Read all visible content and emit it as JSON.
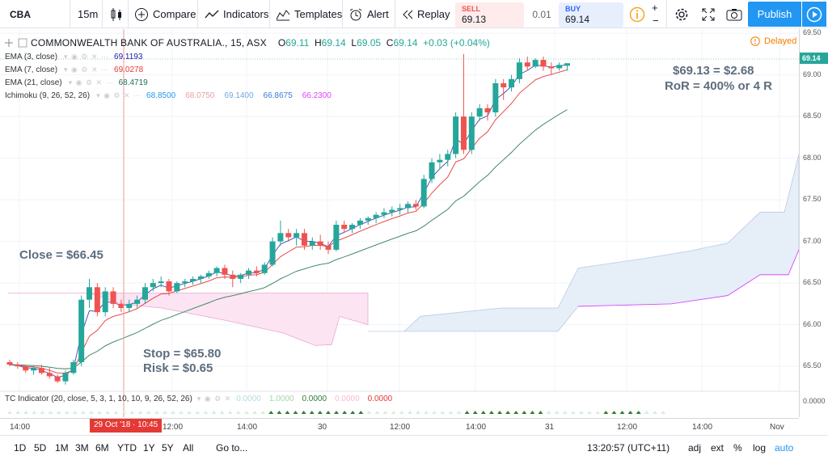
{
  "toolbar": {
    "symbol": "CBA",
    "interval": "15m",
    "compare": "Compare",
    "indicators": "Indicators",
    "templates": "Templates",
    "alert": "Alert",
    "replay": "Replay",
    "sell_label": "SELL",
    "sell_price": "69.13",
    "spread": "0.01",
    "buy_label": "BUY",
    "buy_price": "69.14",
    "publish": "Publish"
  },
  "legend": {
    "title": "COMMONWEALTH BANK OF AUSTRALIA., 15, ASX",
    "o_label": "O",
    "o": "69.11",
    "h_label": "H",
    "h": "69.14",
    "l_label": "L",
    "l": "69.05",
    "c_label": "C",
    "c": "69.14",
    "change": "+0.03 (+0.04%)",
    "delayed": "Delayed",
    "indicators": [
      {
        "name": "EMA (3, close)",
        "values": [
          {
            "v": "69.1193",
            "color": "#1a1aa6"
          }
        ]
      },
      {
        "name": "EMA (7, close)",
        "values": [
          {
            "v": "69.0278",
            "color": "#e53935"
          }
        ]
      },
      {
        "name": "EMA (21, close)",
        "values": [
          {
            "v": "68.4719",
            "color": "#1f6e5a"
          }
        ]
      },
      {
        "name": "Ichimoku (9, 26, 52, 26)",
        "values": [
          {
            "v": "68.8500",
            "color": "#2196f3"
          },
          {
            "v": "68.0750",
            "color": "#e8a0a0"
          },
          {
            "v": "69.1400",
            "color": "#6fa8dc"
          },
          {
            "v": "66.8675",
            "color": "#3c78d8"
          },
          {
            "v": "66.2300",
            "color": "#e040fb"
          }
        ]
      }
    ]
  },
  "annotations": {
    "close": "Close = $66.45",
    "stop": "Stop = $65.80",
    "risk": "Risk = $0.65",
    "target": "$69.13 = $2.68",
    "ror": "RoR = 400% or 4 R"
  },
  "tc_indicator": {
    "name": "TC Indicator (20, close, 5, 3, 1, 10, 10, 9, 26, 52, 26)",
    "values": [
      {
        "v": "0.0000",
        "color": "#b2dfdb"
      },
      {
        "v": "1.0000",
        "color": "#a5d6a7"
      },
      {
        "v": "0.0000",
        "color": "#2e7d32"
      },
      {
        "v": "0.0000",
        "color": "#f8bbd0"
      },
      {
        "v": "0.0000",
        "color": "#e53935"
      }
    ]
  },
  "price_axis": {
    "ticks": [
      "69.50",
      "69.00",
      "68.50",
      "68.00",
      "67.50",
      "67.00",
      "66.50",
      "66.00",
      "65.50"
    ],
    "current": "69.14",
    "osc_tick": "0.0000"
  },
  "time_axis": {
    "ticks": [
      "14:00",
      "12:00",
      "14:00",
      "30",
      "12:00",
      "14:00",
      "31",
      "12:00",
      "14:00",
      "Nov"
    ],
    "cursor": "29 Oct '18 · 10:45"
  },
  "bottom_bar": {
    "ranges": [
      "1D",
      "5D",
      "1M",
      "3M",
      "6M",
      "YTD",
      "1Y",
      "5Y",
      "All"
    ],
    "goto": "Go to...",
    "clock": "13:20:57 (UTC+11)",
    "adj": "adj",
    "ext": "ext",
    "pct": "%",
    "log": "log",
    "auto": "auto"
  },
  "chart_data": {
    "type": "candlestick",
    "ylim": [
      65.2,
      69.55
    ],
    "candles": [
      [
        65.55,
        65.58,
        65.5,
        65.52
      ],
      [
        65.52,
        65.55,
        65.47,
        65.5
      ],
      [
        65.5,
        65.52,
        65.42,
        65.45
      ],
      [
        65.45,
        65.5,
        65.4,
        65.48
      ],
      [
        65.48,
        65.52,
        65.4,
        65.42
      ],
      [
        65.42,
        65.48,
        65.35,
        65.38
      ],
      [
        65.38,
        65.4,
        65.3,
        65.32
      ],
      [
        65.32,
        65.45,
        65.28,
        65.42
      ],
      [
        65.42,
        65.58,
        65.4,
        65.55
      ],
      [
        65.55,
        66.35,
        65.5,
        66.3
      ],
      [
        66.3,
        66.55,
        66.2,
        66.45
      ],
      [
        66.45,
        66.5,
        66.1,
        66.15
      ],
      [
        66.15,
        66.45,
        66.1,
        66.4
      ],
      [
        66.4,
        66.45,
        66.2,
        66.25
      ],
      [
        66.25,
        66.3,
        66.15,
        66.2
      ],
      [
        66.2,
        66.3,
        66.15,
        66.25
      ],
      [
        66.25,
        66.35,
        66.2,
        66.3
      ],
      [
        66.3,
        66.5,
        66.25,
        66.45
      ],
      [
        66.45,
        66.55,
        66.4,
        66.5
      ],
      [
        66.5,
        66.58,
        66.45,
        66.52
      ],
      [
        66.52,
        66.55,
        66.35,
        66.4
      ],
      [
        66.4,
        66.52,
        66.38,
        66.5
      ],
      [
        66.5,
        66.55,
        66.45,
        66.52
      ],
      [
        66.52,
        66.58,
        66.48,
        66.55
      ],
      [
        66.55,
        66.6,
        66.5,
        66.58
      ],
      [
        66.58,
        66.65,
        66.55,
        66.62
      ],
      [
        66.62,
        66.7,
        66.58,
        66.68
      ],
      [
        66.68,
        66.72,
        66.55,
        66.6
      ],
      [
        66.6,
        66.65,
        66.45,
        66.55
      ],
      [
        66.55,
        66.62,
        66.5,
        66.6
      ],
      [
        66.6,
        66.68,
        66.55,
        66.65
      ],
      [
        66.65,
        66.7,
        66.58,
        66.62
      ],
      [
        66.62,
        66.75,
        66.6,
        66.72
      ],
      [
        66.72,
        67.05,
        66.7,
        67.0
      ],
      [
        67.0,
        67.25,
        66.95,
        67.1
      ],
      [
        67.1,
        67.15,
        67.0,
        67.05
      ],
      [
        67.05,
        67.15,
        66.95,
        67.1
      ],
      [
        67.1,
        67.15,
        66.9,
        66.95
      ],
      [
        66.95,
        67.05,
        66.9,
        67.0
      ],
      [
        67.0,
        67.08,
        66.9,
        66.95
      ],
      [
        66.95,
        67.0,
        66.85,
        66.9
      ],
      [
        66.9,
        67.25,
        66.88,
        67.2
      ],
      [
        67.2,
        67.25,
        67.1,
        67.15
      ],
      [
        67.15,
        67.22,
        67.1,
        67.2
      ],
      [
        67.2,
        67.28,
        67.15,
        67.25
      ],
      [
        67.25,
        67.3,
        67.2,
        67.28
      ],
      [
        67.28,
        67.35,
        67.22,
        67.32
      ],
      [
        67.32,
        67.4,
        67.28,
        67.35
      ],
      [
        67.35,
        67.42,
        67.3,
        67.38
      ],
      [
        67.38,
        67.45,
        67.32,
        67.4
      ],
      [
        67.4,
        67.48,
        67.35,
        67.45
      ],
      [
        67.45,
        67.5,
        67.38,
        67.42
      ],
      [
        67.42,
        67.8,
        67.4,
        67.75
      ],
      [
        67.75,
        68.0,
        67.7,
        67.95
      ],
      [
        67.95,
        68.05,
        67.88,
        67.98
      ],
      [
        67.98,
        68.1,
        67.9,
        68.05
      ],
      [
        68.05,
        68.55,
        68.0,
        68.5
      ],
      [
        68.5,
        69.25,
        68.05,
        68.1
      ],
      [
        68.1,
        68.55,
        68.05,
        68.5
      ],
      [
        68.5,
        68.65,
        68.45,
        68.6
      ],
      [
        68.6,
        68.65,
        68.45,
        68.55
      ],
      [
        68.55,
        68.95,
        68.5,
        68.9
      ],
      [
        68.9,
        68.95,
        68.7,
        68.85
      ],
      [
        68.85,
        69.0,
        68.8,
        68.95
      ],
      [
        68.95,
        69.2,
        68.9,
        69.15
      ],
      [
        69.15,
        69.22,
        69.05,
        69.1
      ],
      [
        69.1,
        69.2,
        69.08,
        69.18
      ],
      [
        69.18,
        69.22,
        69.05,
        69.1
      ],
      [
        69.1,
        69.15,
        69.0,
        69.08
      ],
      [
        69.08,
        69.15,
        69.05,
        69.12
      ],
      [
        69.11,
        69.14,
        69.05,
        69.14
      ]
    ]
  }
}
